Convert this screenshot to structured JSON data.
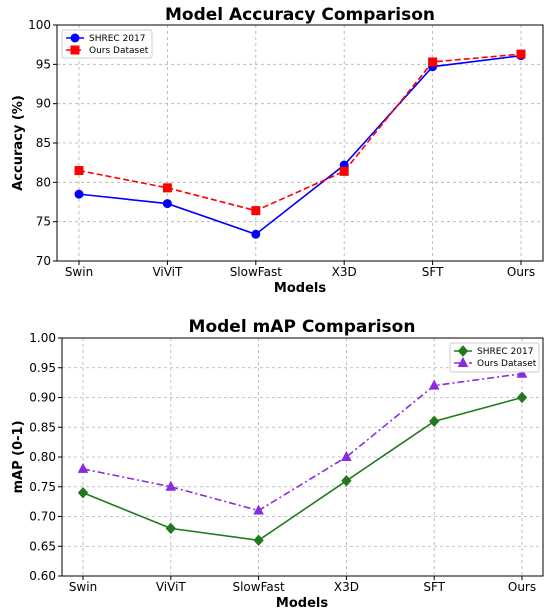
{
  "chart_data": [
    {
      "type": "line",
      "title": "Model Accuracy Comparison",
      "xlabel": "Models",
      "ylabel": "Accuracy (%)",
      "categories": [
        "Swin",
        "ViViT",
        "SlowFast",
        "X3D",
        "SFT",
        "Ours"
      ],
      "ylim": [
        70,
        100
      ],
      "yticks": [
        "70",
        "75",
        "80",
        "85",
        "90",
        "95",
        "100"
      ],
      "grid": true,
      "legend_position": "top-left",
      "series": [
        {
          "name": "SHREC 2017",
          "values": [
            78.5,
            77.3,
            73.4,
            82.2,
            94.7,
            96.1
          ],
          "color": "#0000ff",
          "marker": "circle",
          "line": "solid"
        },
        {
          "name": "Ours Dataset",
          "values": [
            81.5,
            79.3,
            76.4,
            81.4,
            95.3,
            96.3
          ],
          "color": "#ff0000",
          "marker": "square",
          "line": "dashed"
        }
      ]
    },
    {
      "type": "line",
      "title": "Model mAP Comparison",
      "xlabel": "Models",
      "ylabel": "mAP (0-1)",
      "categories": [
        "Swin",
        "ViViT",
        "SlowFast",
        "X3D",
        "SFT",
        "Ours"
      ],
      "ylim": [
        0.6,
        1.0
      ],
      "yticks": [
        "0.60",
        "0.65",
        "0.70",
        "0.75",
        "0.80",
        "0.85",
        "0.90",
        "0.95",
        "1.00"
      ],
      "grid": true,
      "legend_position": "top-right",
      "series": [
        {
          "name": "SHREC 2017",
          "values": [
            0.74,
            0.68,
            0.66,
            0.76,
            0.86,
            0.9
          ],
          "color": "#217a1d",
          "marker": "diamond",
          "line": "solid"
        },
        {
          "name": "Ours Dataset",
          "values": [
            0.78,
            0.75,
            0.71,
            0.8,
            0.92,
            0.94
          ],
          "color": "#8a2be2",
          "marker": "triangle",
          "line": "dashdot"
        }
      ]
    }
  ]
}
